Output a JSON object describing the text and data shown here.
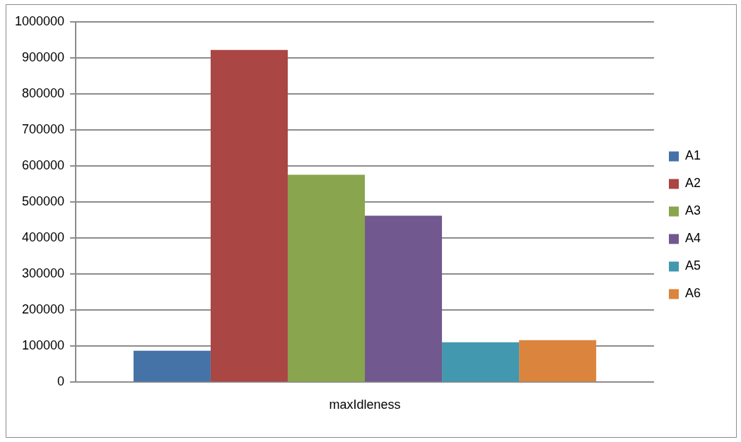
{
  "chart_data": {
    "type": "bar",
    "categories": [
      "maxIdleness"
    ],
    "series": [
      {
        "name": "A1",
        "color": "#4572a7",
        "values": [
          87500
        ]
      },
      {
        "name": "A2",
        "color": "#aa4643",
        "values": [
          922000
        ]
      },
      {
        "name": "A3",
        "color": "#89a54e",
        "values": [
          576000
        ]
      },
      {
        "name": "A4",
        "color": "#71588f",
        "values": [
          462000
        ]
      },
      {
        "name": "A5",
        "color": "#4198af",
        "values": [
          111000
        ]
      },
      {
        "name": "A6",
        "color": "#db843d",
        "values": [
          117000
        ]
      }
    ],
    "ylim": [
      0,
      1000000
    ],
    "yticks": [
      0,
      100000,
      200000,
      300000,
      400000,
      500000,
      600000,
      700000,
      800000,
      900000,
      1000000
    ],
    "grid": "y",
    "legend": "right"
  }
}
